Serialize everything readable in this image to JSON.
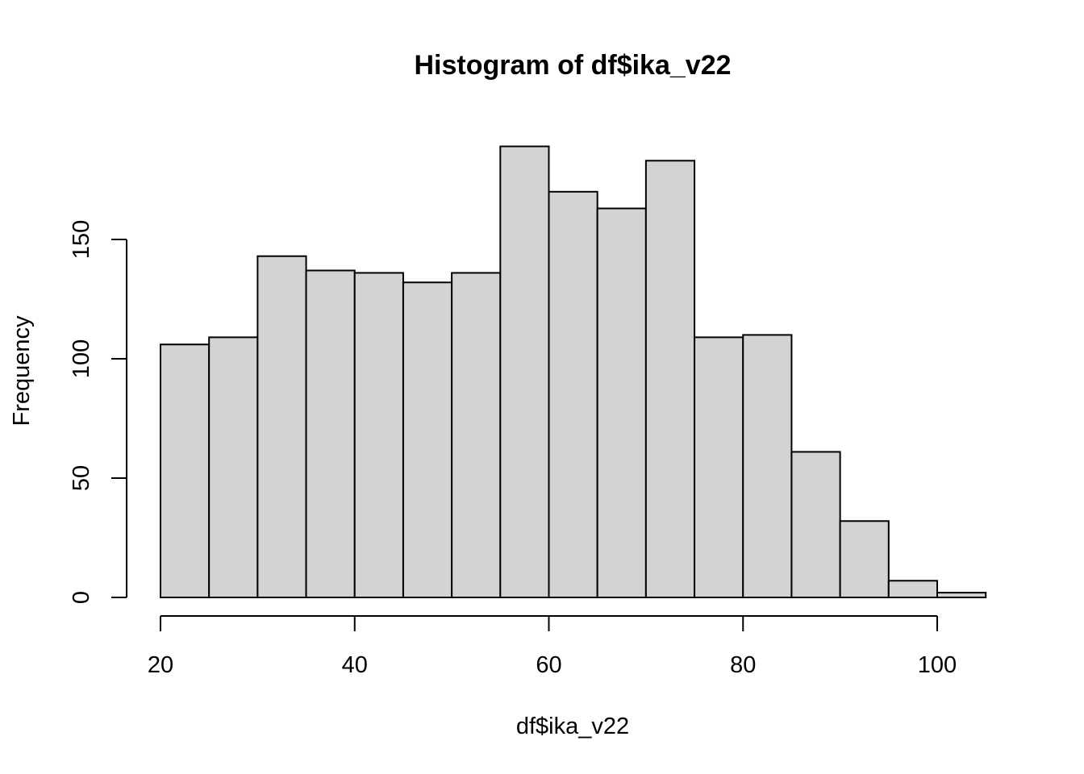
{
  "chart_data": {
    "type": "bar",
    "title": "Histogram of df$ika_v22",
    "xlabel": "df$ika_v22",
    "ylabel": "Frequency",
    "bin_edges": [
      20,
      25,
      30,
      35,
      40,
      45,
      50,
      55,
      60,
      65,
      70,
      75,
      80,
      85,
      90,
      95,
      100,
      105
    ],
    "values": [
      106,
      109,
      143,
      137,
      136,
      132,
      136,
      189,
      170,
      163,
      183,
      109,
      110,
      61,
      32,
      7,
      2
    ],
    "xlim": [
      20,
      105
    ],
    "ylim": [
      0,
      189
    ],
    "x_ticks": [
      20,
      40,
      60,
      80,
      100
    ],
    "x_tick_labels": [
      "20",
      "40",
      "60",
      "80",
      "100"
    ],
    "y_ticks": [
      0,
      50,
      100,
      150
    ],
    "y_tick_labels": [
      "0",
      "50",
      "100",
      "150"
    ],
    "bar_fill": "#d3d3d3",
    "grid": false
  }
}
